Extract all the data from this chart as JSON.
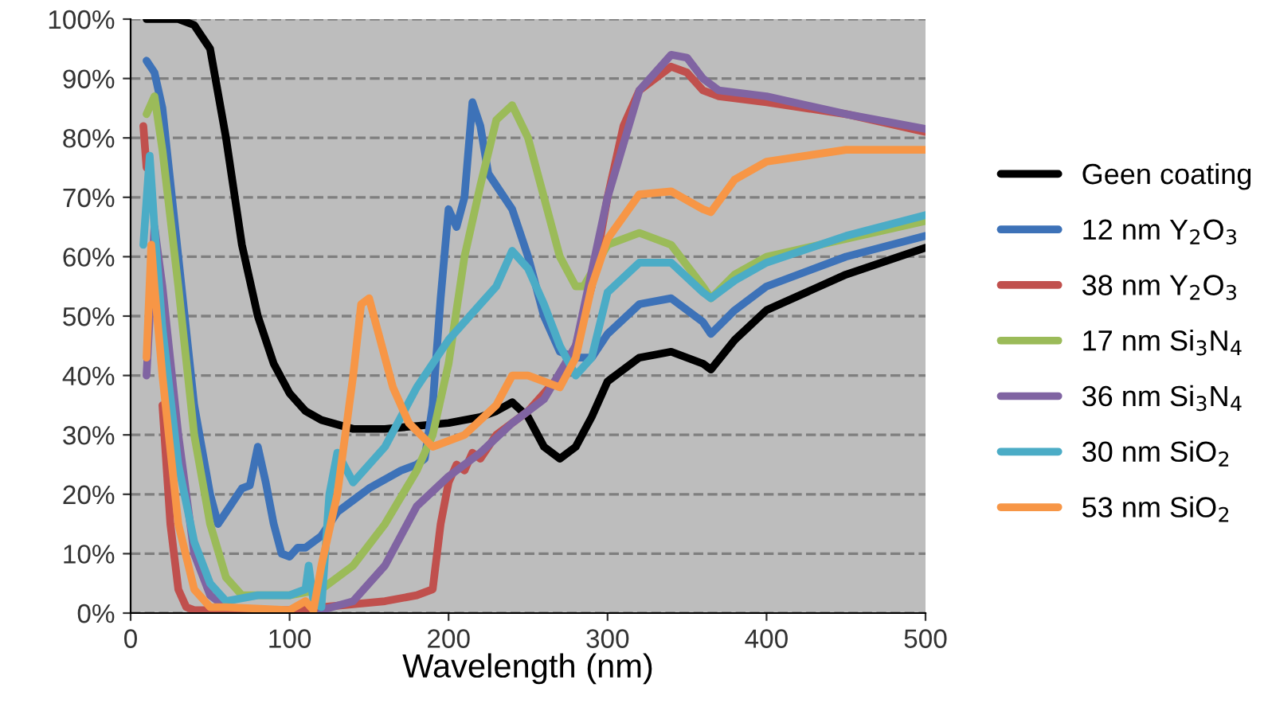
{
  "chart_data": {
    "type": "line",
    "xlabel": "Wavelength (nm)",
    "xlim": [
      0,
      500
    ],
    "xticks": [
      0,
      100,
      200,
      300,
      400,
      500
    ],
    "ylim": [
      0,
      100
    ],
    "yticks": [
      {
        "value": 0,
        "label": "0%"
      },
      {
        "value": 10,
        "label": "10%"
      },
      {
        "value": 20,
        "label": "20%"
      },
      {
        "value": 30,
        "label": "30%"
      },
      {
        "value": 40,
        "label": "40%"
      },
      {
        "value": 50,
        "label": "50%"
      },
      {
        "value": 60,
        "label": "60%"
      },
      {
        "value": 70,
        "label": "70%"
      },
      {
        "value": 80,
        "label": "80%"
      },
      {
        "value": 90,
        "label": "90%"
      },
      {
        "value": 100,
        "label": "100%"
      }
    ],
    "grid": "y",
    "legend": "right",
    "marker": "none",
    "line_style": "solid",
    "series": [
      {
        "name": "Geen coating",
        "color": "#000000",
        "x": [
          10,
          30,
          40,
          50,
          60,
          70,
          80,
          90,
          100,
          110,
          120,
          140,
          160,
          180,
          200,
          220,
          230,
          240,
          250,
          260,
          270,
          280,
          290,
          300,
          320,
          340,
          360,
          365,
          380,
          400,
          450,
          500
        ],
        "values": [
          100,
          100,
          99,
          95,
          80,
          62,
          50,
          42,
          37,
          34,
          32.5,
          31,
          31,
          31.5,
          32,
          33,
          34,
          35.5,
          33,
          28,
          26,
          28,
          33,
          39,
          43,
          44,
          42,
          41,
          46,
          51,
          57,
          61.5
        ]
      },
      {
        "name": "12 nm Y$_{2}$O$_{3}$",
        "color": "#3d72b8",
        "x": [
          10,
          15,
          20,
          30,
          40,
          50,
          55,
          60,
          70,
          75,
          80,
          85,
          90,
          95,
          100,
          105,
          110,
          120,
          130,
          140,
          150,
          170,
          180,
          185,
          190,
          195,
          200,
          205,
          210,
          215,
          220,
          225,
          240,
          250,
          260,
          270,
          280,
          290,
          300,
          320,
          340,
          360,
          365,
          380,
          400,
          450,
          500
        ],
        "values": [
          93,
          91,
          85,
          60,
          35,
          20,
          15,
          17,
          21,
          21.5,
          28,
          22,
          15,
          10,
          9.5,
          11,
          11,
          13,
          17,
          19,
          21,
          24,
          25,
          26,
          35,
          53,
          68,
          65,
          70,
          86,
          82,
          74,
          68,
          60,
          50,
          44,
          43,
          43,
          47,
          52,
          53,
          49,
          47,
          51,
          55,
          60,
          63.5
        ]
      },
      {
        "name": "38 nm Y$_{2}$O$_{3}$",
        "color": "#c0504d",
        "x": [
          8,
          10,
          15,
          20,
          25,
          30,
          35,
          40,
          60,
          100,
          120,
          140,
          160,
          180,
          190,
          195,
          200,
          205,
          210,
          215,
          220,
          230,
          250,
          270,
          280,
          290,
          300,
          310,
          320,
          340,
          350,
          360,
          370,
          400,
          450,
          500
        ],
        "values": [
          82,
          75,
          null,
          35,
          15,
          4,
          1,
          0.5,
          0.5,
          0.5,
          1,
          1.5,
          2,
          3,
          4,
          15,
          22,
          25,
          24,
          27,
          26,
          30,
          34,
          40,
          45,
          55,
          70,
          82,
          88,
          92,
          91,
          88,
          87,
          86,
          84,
          81
        ]
      },
      {
        "name": "17 nm Si$_{3}$N$_{4}$",
        "color": "#9bbb59",
        "x": [
          10,
          15,
          20,
          30,
          40,
          50,
          60,
          70,
          80,
          100,
          120,
          140,
          160,
          180,
          190,
          200,
          210,
          220,
          230,
          240,
          250,
          260,
          270,
          280,
          285,
          300,
          320,
          340,
          360,
          365,
          380,
          400,
          450,
          500
        ],
        "values": [
          84,
          87,
          78,
          55,
          30,
          15,
          6,
          3,
          3,
          3,
          4,
          8,
          15,
          24,
          30,
          42,
          60,
          72,
          83,
          85.5,
          80,
          70,
          60,
          55,
          55,
          62,
          64,
          62,
          55,
          53,
          57,
          60,
          63,
          66
        ]
      },
      {
        "name": "36 nm Si$_{3}$N$_{4}$",
        "color": "#8064a2",
        "x": [
          10,
          15,
          20,
          30,
          40,
          50,
          60,
          80,
          120,
          140,
          160,
          180,
          200,
          220,
          240,
          260,
          280,
          300,
          320,
          340,
          350,
          360,
          370,
          400,
          450,
          500
        ],
        "values": [
          40,
          65,
          55,
          30,
          10,
          3,
          1,
          null,
          0.5,
          2,
          8,
          18,
          23,
          27,
          32,
          36,
          45,
          70,
          88,
          94,
          93.5,
          90,
          88,
          87,
          84,
          81.5
        ]
      },
      {
        "name": "30 nm SiO$_{2}$",
        "color": "#4bacc6",
        "x": [
          8,
          12,
          15,
          20,
          30,
          40,
          50,
          60,
          80,
          100,
          110,
          112,
          115,
          120,
          125,
          130,
          140,
          160,
          180,
          200,
          220,
          230,
          240,
          250,
          260,
          270,
          280,
          290,
          300,
          320,
          340,
          360,
          365,
          380,
          400,
          450,
          500
        ],
        "values": [
          62,
          77,
          65,
          48,
          25,
          12,
          5,
          2,
          3,
          3,
          4,
          8,
          2,
          1,
          20,
          27,
          22,
          28,
          38,
          46,
          52,
          55,
          61,
          58,
          52,
          45,
          40,
          43,
          54,
          59,
          59,
          54,
          53,
          56,
          59,
          63.5,
          67
        ]
      },
      {
        "name": "53 nm SiO$_{2}$",
        "color": "#f79646",
        "x": [
          10,
          13,
          15,
          20,
          30,
          40,
          50,
          60,
          100,
          110,
          115,
          120,
          130,
          140,
          145,
          150,
          155,
          165,
          175,
          190,
          210,
          230,
          240,
          250,
          270,
          280,
          290,
          300,
          320,
          340,
          360,
          365,
          380,
          400,
          450,
          500
        ],
        "values": [
          43,
          62,
          55,
          40,
          15,
          4,
          1,
          1,
          0.5,
          2,
          0.5,
          8,
          20,
          40,
          52,
          53,
          48,
          38,
          32,
          28,
          30,
          35,
          40,
          40,
          38,
          43,
          55,
          63,
          70.5,
          71,
          68,
          67.5,
          73,
          76,
          78,
          78
        ]
      }
    ]
  }
}
